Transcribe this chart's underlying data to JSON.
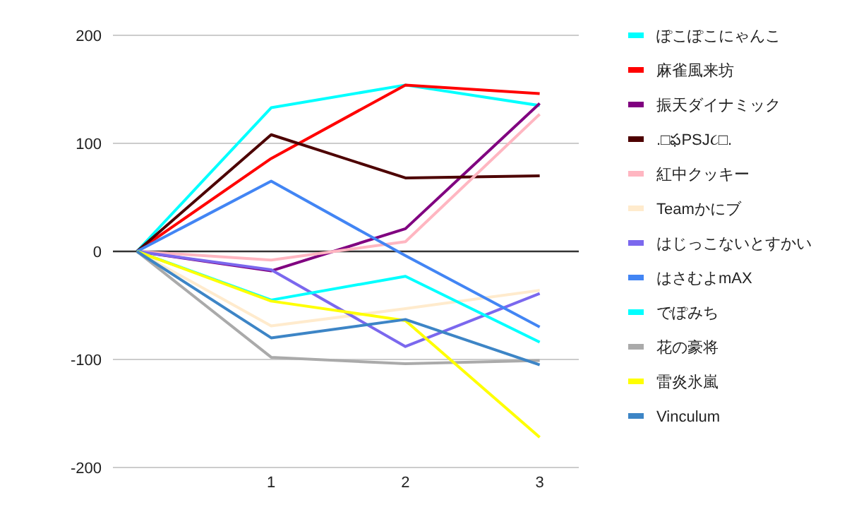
{
  "chart_data": {
    "type": "line",
    "categories": [
      null,
      "1",
      "2",
      "3"
    ],
    "ylim": [
      -200,
      200
    ],
    "yticks": [
      -200,
      -100,
      0,
      100,
      200
    ],
    "grid": "y",
    "legend": "right",
    "series": [
      {
        "name": "ぽこぽこにゃんこ",
        "color": "#00ffff",
        "values": [
          0,
          133,
          154,
          135
        ]
      },
      {
        "name": "麻雀風来坊",
        "color": "#ff0000",
        "values": [
          0,
          86,
          154,
          146
        ]
      },
      {
        "name": "振天ダイナミック",
        "color": "#800080",
        "values": [
          0,
          -18,
          21,
          137
        ]
      },
      {
        "name": ".□ఫPSJ૮□.",
        "color": "#4d0000",
        "values": [
          0,
          108,
          68,
          70
        ]
      },
      {
        "name": "紅中クッキー",
        "color": "#ffb6c1",
        "values": [
          0,
          -8,
          9,
          127
        ]
      },
      {
        "name": "Teamかにブ",
        "color": "#ffebcd",
        "values": [
          0,
          -69,
          -53,
          -36
        ]
      },
      {
        "name": "はじっこないとすかい",
        "color": "#7b68ee",
        "values": [
          0,
          -17,
          -88,
          -39
        ]
      },
      {
        "name": "はさむよmAX",
        "color": "#4285f4",
        "values": [
          0,
          65,
          -4,
          -70
        ]
      },
      {
        "name": "でぽみち",
        "color": "#00ffff",
        "values": [
          0,
          -45,
          -23,
          -84
        ]
      },
      {
        "name": "花の豪将",
        "color": "#aaaaaa",
        "values": [
          0,
          -98,
          -104,
          -101
        ]
      },
      {
        "name": "雷炎氷嵐",
        "color": "#ffff00",
        "values": [
          0,
          -46,
          -64,
          -172
        ]
      },
      {
        "name": "Vinculum",
        "color": "#3d85c6",
        "values": [
          0,
          -80,
          -63,
          -105
        ]
      }
    ]
  }
}
